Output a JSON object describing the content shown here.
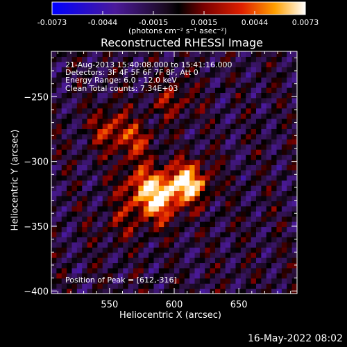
{
  "colorbar": {
    "ticks": [
      "-0.0073",
      "-0.0044",
      "-0.0015",
      "0.0015",
      "0.0044",
      "0.0073"
    ],
    "label": "(photons cm⁻² s⁻¹ asec⁻²)"
  },
  "chart_data": {
    "type": "heatmap",
    "title": "Reconstructed RHESSI Image",
    "xlabel": "Heliocentric X (arcsec)",
    "ylabel": "Heliocentric Y (arcsec)",
    "xlim": [
      505,
      695
    ],
    "ylim": [
      -402,
      -215
    ],
    "x_ticks": [
      550,
      600,
      650
    ],
    "y_ticks": [
      -250,
      -300,
      -350,
      -400
    ],
    "color_range": [
      -0.0073,
      0.0073
    ],
    "peak": [
      612,
      -316
    ],
    "sources": [
      {
        "x": 612,
        "y": -316,
        "value": 0.0072
      },
      {
        "x": 592,
        "y": -322,
        "value": 0.0052
      },
      {
        "x": 585,
        "y": -335,
        "value": 0.0038
      },
      {
        "x": 572,
        "y": -318,
        "value": 0.004
      },
      {
        "x": 550,
        "y": -275,
        "value": 0.004
      },
      {
        "x": 570,
        "y": -285,
        "value": 0.0034
      },
      {
        "x": 600,
        "y": -252,
        "value": 0.003
      },
      {
        "x": 560,
        "y": -345,
        "value": 0.0022
      }
    ]
  },
  "annotations": {
    "time": "21-Aug-2013 15:40:08.000 to 15:41:16.000",
    "detectors": "Detectors: 3F 4F 5F 6F 7F 8F, Att 0",
    "energy": "Energy Range: 6.0 - 12.0 keV",
    "clean": "Clean     Total counts: 7.34E+03",
    "peak": "Position of Peak = [612,-316]"
  },
  "footer": {
    "date": "16-May-2022 08:02"
  }
}
